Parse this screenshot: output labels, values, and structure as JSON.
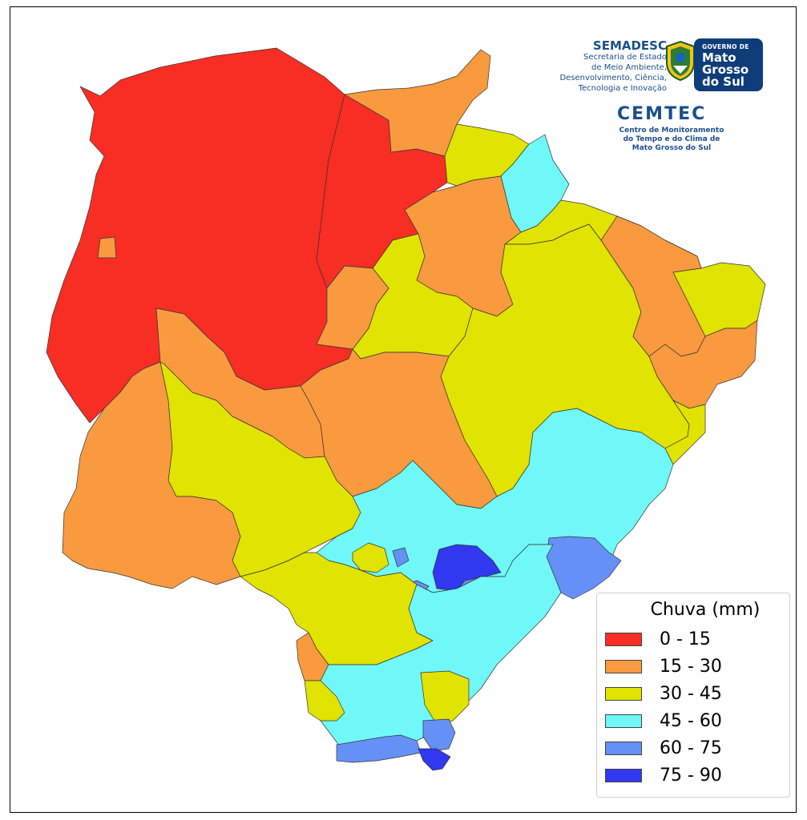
{
  "colors": {
    "c0_15": "#f82d24",
    "c15_30": "#f99a3f",
    "c30_45": "#e1e300",
    "c45_60": "#6ff8f7",
    "c60_75": "#6591f7",
    "c75_90": "#3038f0",
    "border": "#333333"
  },
  "header": {
    "semadesc_title": "SEMADESC",
    "semadesc_lines": [
      "Secretaria de Estado",
      "de Meio Ambiente,",
      "Desenvolvimento, Ciência,",
      "Tecnologia e Inovação"
    ],
    "governo_small": "GOVERNO DE",
    "governo_lines": [
      "Mato",
      "Grosso",
      "do Sul"
    ],
    "cemtec_title": "CEMTEC",
    "cemtec_lines": [
      "Centro de Monitoramento",
      "do Tempo e do Clima de",
      "Mato Grosso do Sul"
    ]
  },
  "legend": {
    "title": "Chuva (mm)",
    "items": [
      {
        "label": "0 - 15",
        "color": "#f82d24"
      },
      {
        "label": "15 - 30",
        "color": "#f99a3f"
      },
      {
        "label": "30 - 45",
        "color": "#e1e300"
      },
      {
        "label": "45 - 60",
        "color": "#6ff8f7"
      },
      {
        "label": "60 - 75",
        "color": "#6591f7"
      },
      {
        "label": "75 - 90",
        "color": "#3038f0"
      }
    ]
  },
  "icons": {
    "seal": "state-coat-of-arms-icon"
  }
}
